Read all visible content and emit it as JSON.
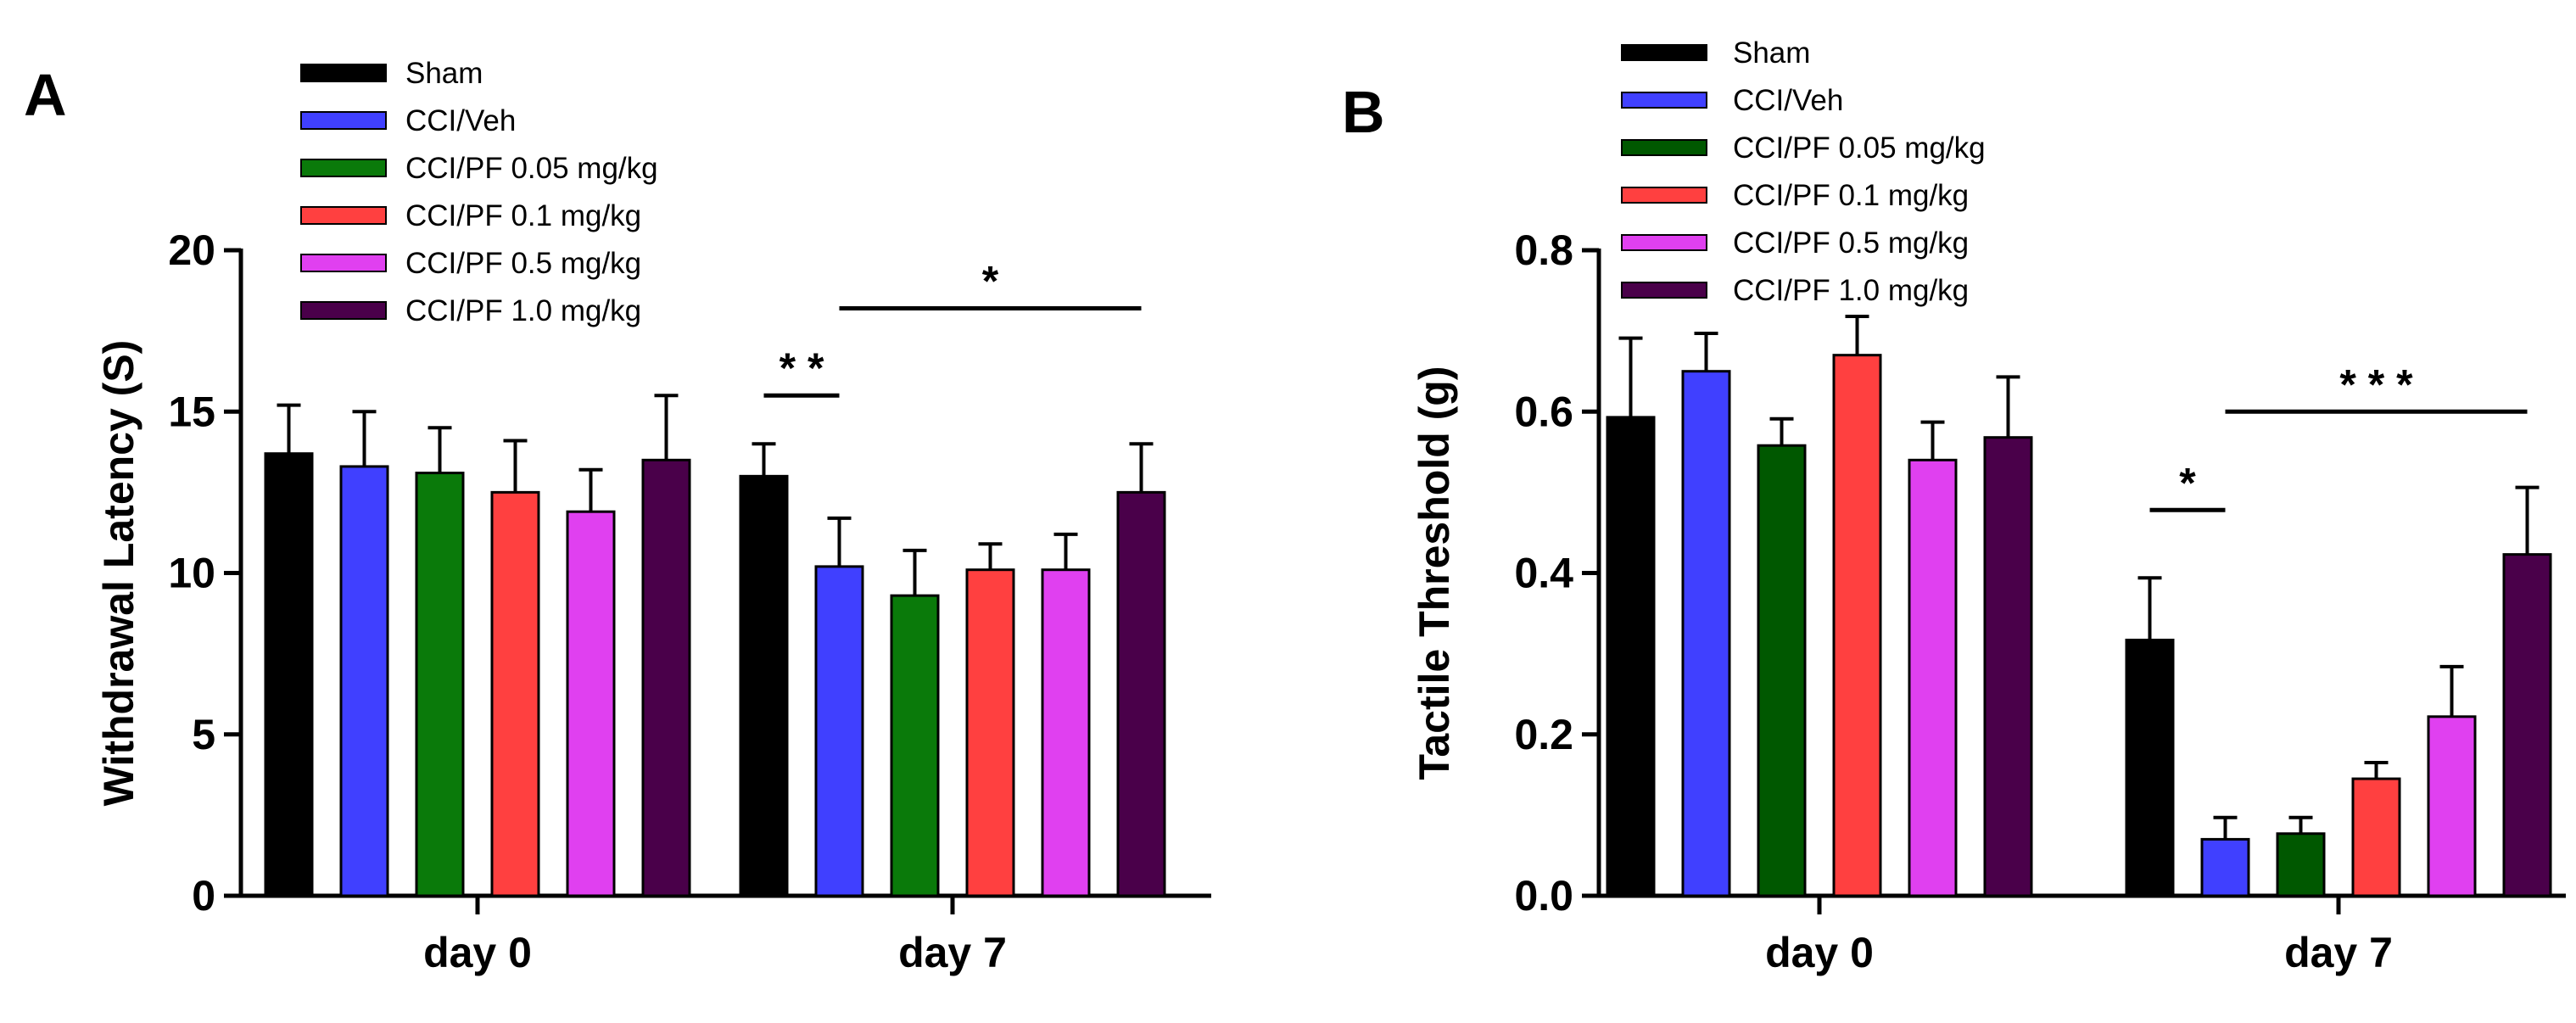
{
  "chart_data": [
    {
      "type": "bar",
      "panel_label": "A",
      "ylabel": "Withdrawal Latency (S)",
      "ylim": [
        0,
        20
      ],
      "yticks": [
        "0",
        "5",
        "10",
        "15",
        "20"
      ],
      "ytick_values": [
        0,
        5,
        10,
        15,
        20
      ],
      "categories": [
        "day 0",
        "day 7"
      ],
      "legend_placement": "top-left",
      "grid": false,
      "series": [
        {
          "name": "Sham",
          "color": "#000000",
          "values": [
            13.7,
            13.0
          ],
          "errors": [
            1.5,
            1.0
          ]
        },
        {
          "name": "CCI/Veh",
          "color": "#4040ff",
          "values": [
            13.3,
            10.2
          ],
          "errors": [
            1.7,
            1.5
          ]
        },
        {
          "name": "CCI/PF 0.05 mg/kg",
          "color": "#0a7a0a",
          "values": [
            13.1,
            9.3
          ],
          "errors": [
            1.4,
            1.4
          ]
        },
        {
          "name": "CCI/PF 0.1 mg/kg",
          "color": "#ff4040",
          "values": [
            12.5,
            10.1
          ],
          "errors": [
            1.6,
            0.8
          ]
        },
        {
          "name": "CCI/PF 0.5 mg/kg",
          "color": "#e040f0",
          "values": [
            11.9,
            10.1
          ],
          "errors": [
            1.3,
            1.1
          ]
        },
        {
          "name": "CCI/PF 1.0 mg/kg",
          "color": "#4a004a",
          "values": [
            13.5,
            12.5
          ],
          "errors": [
            2.0,
            1.5
          ]
        }
      ],
      "annotations": [
        {
          "text": "* *",
          "category": "day 7",
          "from_series": 0,
          "to_series": 1,
          "y": 15.5
        },
        {
          "text": "*",
          "category": "day 7",
          "from_series": 1,
          "to_series": 5,
          "y": 18.2
        }
      ]
    },
    {
      "type": "bar",
      "panel_label": "B",
      "ylabel": "Tactile Threshold (g)",
      "ylim": [
        0,
        0.8
      ],
      "yticks": [
        "0.0",
        "0.2",
        "0.4",
        "0.6",
        "0.8"
      ],
      "ytick_values": [
        0,
        0.2,
        0.4,
        0.6,
        0.8
      ],
      "categories": [
        "day 0",
        "day 7"
      ],
      "legend_placement": "top-left",
      "grid": false,
      "series": [
        {
          "name": "Sham",
          "color": "#000000",
          "values": [
            0.593,
            0.317
          ],
          "errors": [
            0.098,
            0.077
          ]
        },
        {
          "name": "CCI/Veh",
          "color": "#4040ff",
          "values": [
            0.65,
            0.07
          ],
          "errors": [
            0.047,
            0.027
          ]
        },
        {
          "name": "CCI/PF 0.05 mg/kg",
          "color": "#005800",
          "values": [
            0.558,
            0.077
          ],
          "errors": [
            0.033,
            0.02
          ]
        },
        {
          "name": "CCI/PF 0.1 mg/kg",
          "color": "#ff4040",
          "values": [
            0.67,
            0.145
          ],
          "errors": [
            0.048,
            0.02
          ]
        },
        {
          "name": "CCI/PF 0.5 mg/kg",
          "color": "#e040f0",
          "values": [
            0.54,
            0.222
          ],
          "errors": [
            0.047,
            0.062
          ]
        },
        {
          "name": "CCI/PF 1.0 mg/kg",
          "color": "#4a004a",
          "values": [
            0.568,
            0.423
          ],
          "errors": [
            0.075,
            0.083
          ]
        }
      ],
      "annotations": [
        {
          "text": "*",
          "category": "day 7",
          "from_series": 0,
          "to_series": 1,
          "y": 0.478
        },
        {
          "text": "* * *",
          "category": "day 7",
          "from_series": 1,
          "to_series": 5,
          "y": 0.6
        }
      ]
    }
  ]
}
